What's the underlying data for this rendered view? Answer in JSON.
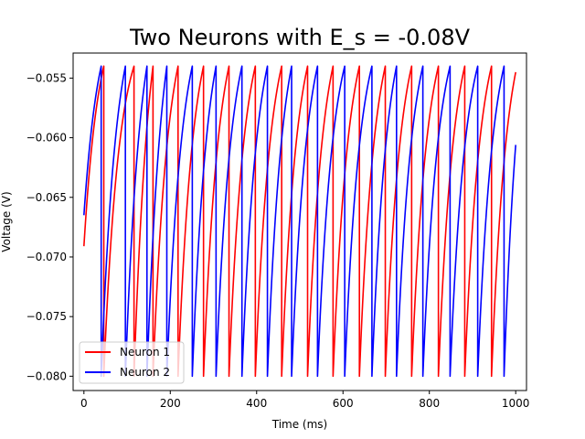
{
  "chart_data": {
    "type": "line",
    "title": "Two Neurons with E_s = -0.08V",
    "xlabel": "Time (ms)",
    "ylabel": "Voltage (V)",
    "xlim": [
      -25,
      1025
    ],
    "ylim": [
      -0.0812,
      -0.0529
    ],
    "xticks": [
      0,
      200,
      400,
      600,
      800,
      1000
    ],
    "xtick_labels": [
      "0",
      "200",
      "400",
      "600",
      "800",
      "1000"
    ],
    "yticks": [
      -0.08,
      -0.075,
      -0.07,
      -0.065,
      -0.06,
      -0.055
    ],
    "ytick_labels": [
      "−0.080",
      "−0.075",
      "−0.070",
      "−0.065",
      "−0.060",
      "−0.055"
    ],
    "grid": false,
    "legend_position": "lower-left",
    "reset_voltage": -0.08,
    "threshold_voltage": -0.054,
    "series": [
      {
        "name": "Neuron 1",
        "color": "#ff0000",
        "start": {
          "t": 0,
          "v": -0.0691
        },
        "spike_times": [
          46,
          116,
          160,
          218,
          277,
          336,
          397,
          458,
          518,
          577,
          638,
          698,
          759,
          821,
          882,
          944
        ],
        "end": {
          "t": 1000,
          "v": -0.0545
        }
      },
      {
        "name": "Neuron 2",
        "color": "#0000ff",
        "start": {
          "t": 0,
          "v": -0.0665
        },
        "spike_times": [
          40,
          96,
          146,
          192,
          251,
          306,
          366,
          425,
          481,
          541,
          604,
          667,
          724,
          785,
          848,
          912,
          973
        ],
        "end": {
          "t": 1000,
          "v": -0.0606
        }
      }
    ]
  }
}
